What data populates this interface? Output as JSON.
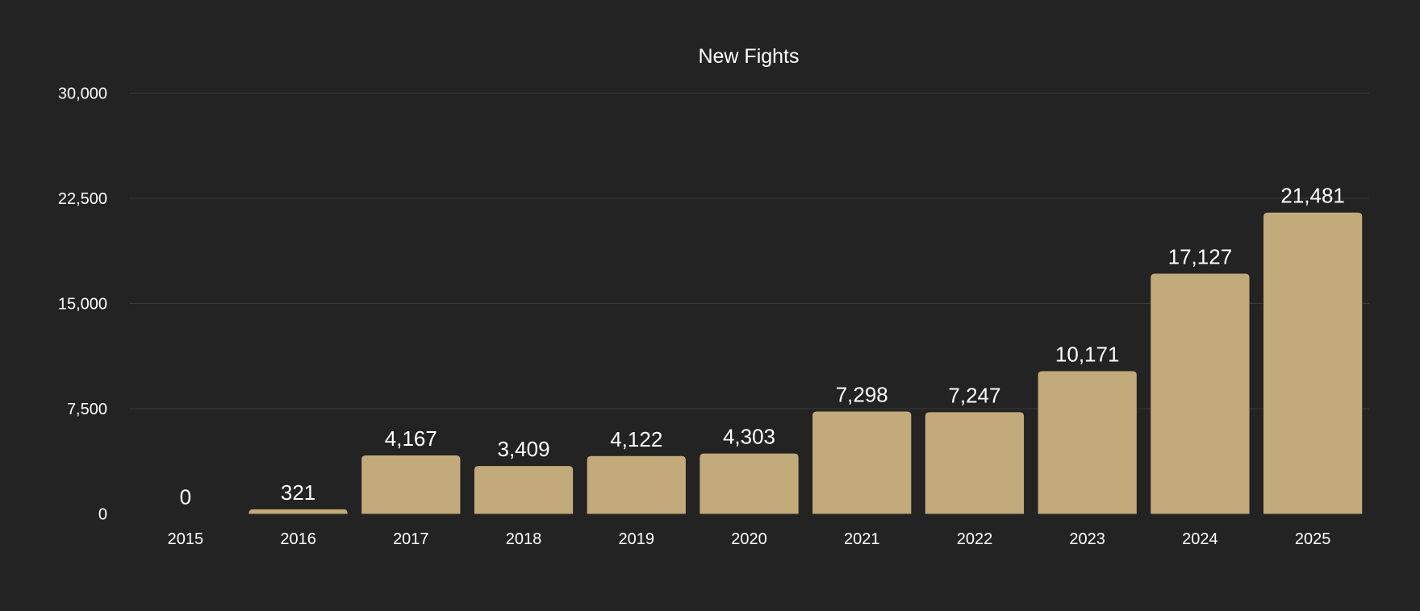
{
  "chart_data": {
    "type": "bar",
    "title": "New Fights",
    "xlabel": "",
    "ylabel": "",
    "categories": [
      "2015",
      "2016",
      "2017",
      "2018",
      "2019",
      "2020",
      "2021",
      "2022",
      "2023",
      "2024",
      "2025"
    ],
    "values": [
      0,
      321,
      4167,
      3409,
      4122,
      4303,
      7298,
      7247,
      10171,
      17127,
      21481
    ],
    "data_labels": [
      "0",
      "321",
      "4,167",
      "3,409",
      "4,122",
      "4,303",
      "7,298",
      "7,247",
      "10,171",
      "17,127",
      "21,481"
    ],
    "ylim": [
      0,
      30000
    ],
    "yticks": [
      0,
      7500,
      15000,
      22500,
      30000
    ],
    "ytick_labels": [
      "0",
      "7,500",
      "15,000",
      "22,500",
      "30,000"
    ],
    "grid": true,
    "legend": "none",
    "colors": {
      "background": "#232323",
      "bar": "#c2aa7b",
      "grid": "#3a3a3a",
      "text": "#ffffff"
    }
  }
}
